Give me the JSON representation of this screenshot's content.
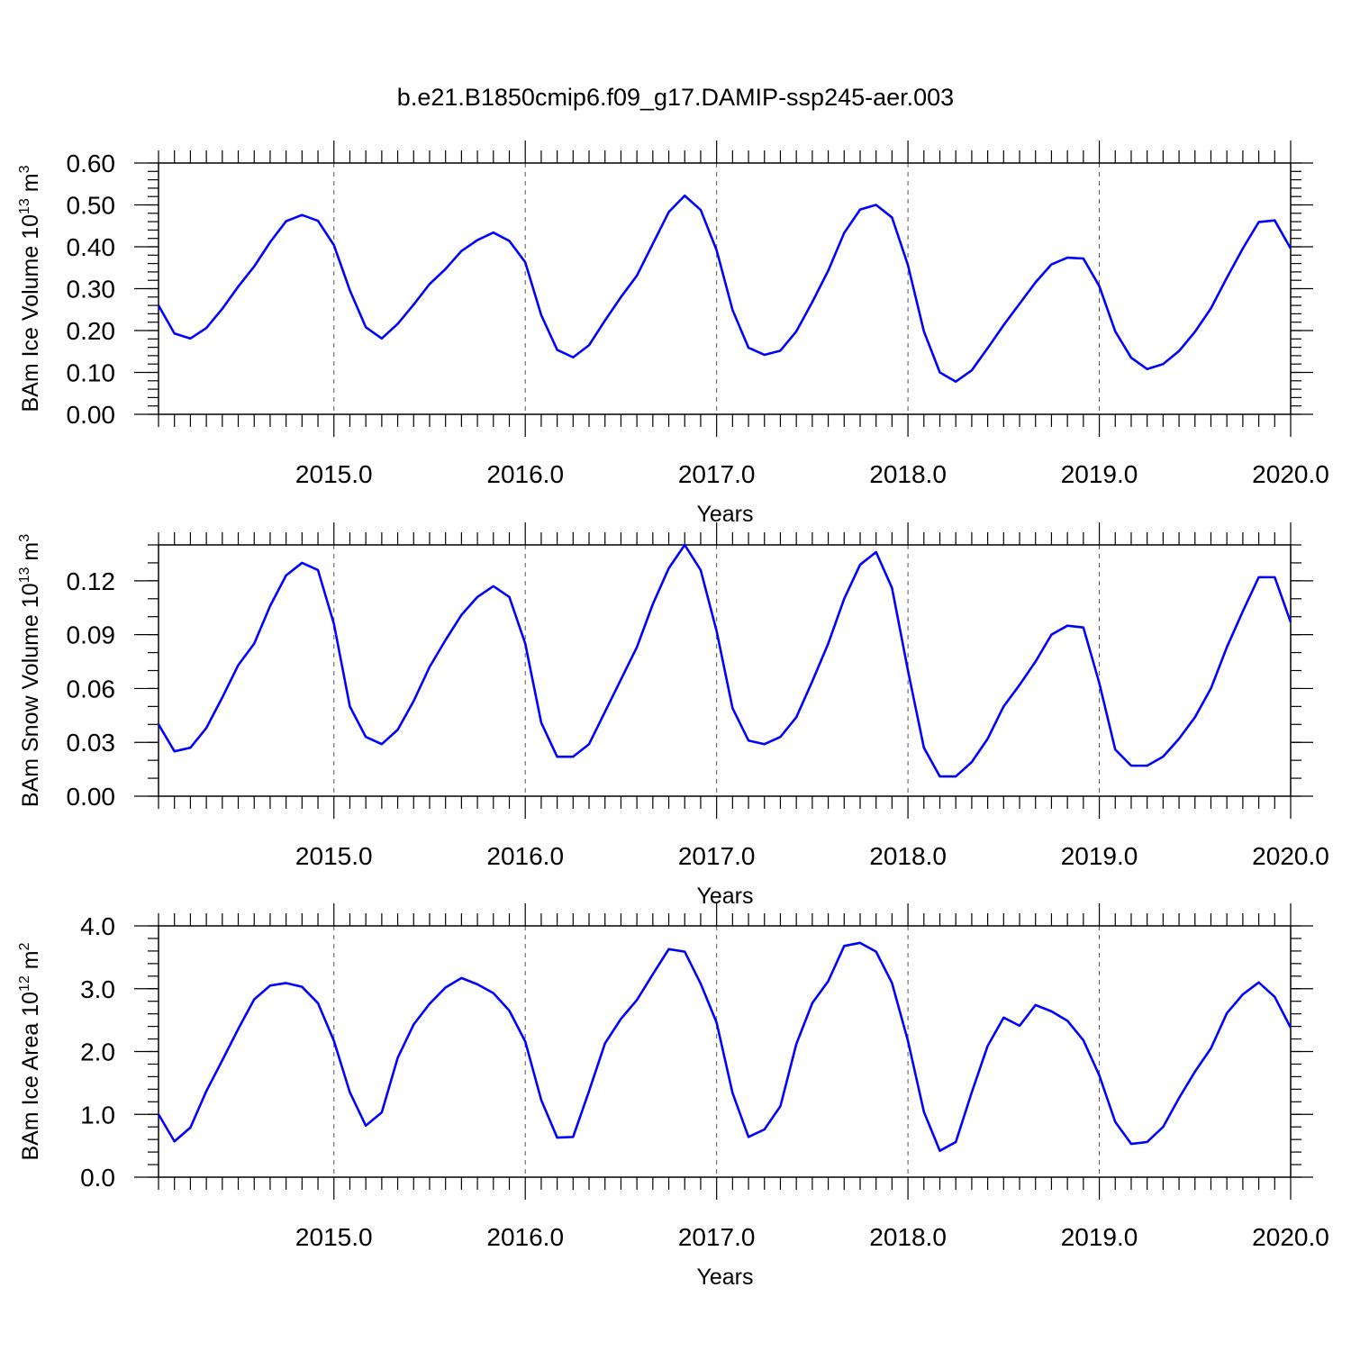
{
  "title": "b.e21.B1850cmip6.f09_g17.DAMIP-ssp245-aer.003",
  "colors": {
    "line": "#0000ff"
  },
  "chart_data": [
    {
      "type": "line",
      "ylabel": "BAm Ice Volume 10",
      "ylabel_exp": "13",
      "ylabel_unit": " m",
      "ylabel_unit_exp": "3",
      "xlabel": "Years",
      "xlim": [
        2014.0833,
        2020.0
      ],
      "ylim": [
        0,
        0.6
      ],
      "yticks": [
        0,
        0.1,
        0.2,
        0.3,
        0.4,
        0.5,
        0.6
      ],
      "ytick_labels": [
        "0.00",
        "0.10",
        "0.20",
        "0.30",
        "0.40",
        "0.50",
        "0.60"
      ],
      "yminor": 0.02,
      "xticks": [
        2015,
        2016,
        2017,
        2018,
        2019,
        2020
      ],
      "xtick_labels": [
        "2015.0",
        "2016.0",
        "2017.0",
        "2018.0",
        "2019.0",
        "2020.0"
      ],
      "grid": "vertical-dashed",
      "series": [
        {
          "values": [
            0.26,
            0.193,
            0.181,
            0.206,
            0.252,
            0.305,
            0.353,
            0.411,
            0.461,
            0.476,
            0.462,
            0.404,
            0.296,
            0.208,
            0.181,
            0.216,
            0.262,
            0.311,
            0.347,
            0.39,
            0.416,
            0.434,
            0.414,
            0.363,
            0.237,
            0.154,
            0.136,
            0.165,
            0.224,
            0.28,
            0.331,
            0.407,
            0.483,
            0.522,
            0.488,
            0.392,
            0.249,
            0.159,
            0.142,
            0.152,
            0.198,
            0.268,
            0.343,
            0.433,
            0.489,
            0.5,
            0.47,
            0.356,
            0.198,
            0.1,
            0.078,
            0.105,
            0.158,
            0.213,
            0.264,
            0.315,
            0.358,
            0.374,
            0.372,
            0.306,
            0.198,
            0.135,
            0.108,
            0.12,
            0.151,
            0.197,
            0.253,
            0.326,
            0.396,
            0.459,
            0.463,
            0.396
          ]
        }
      ]
    },
    {
      "type": "line",
      "ylabel": "BAm Snow Volume 10",
      "ylabel_exp": "13",
      "ylabel_unit": " m",
      "ylabel_unit_exp": "3",
      "xlabel": "Years",
      "xlim": [
        2014.0833,
        2020.0
      ],
      "ylim": [
        0,
        0.14
      ],
      "yticks": [
        0,
        0.03,
        0.06,
        0.09,
        0.12
      ],
      "ytick_labels": [
        "0.00",
        "0.03",
        "0.06",
        "0.09",
        "0.12"
      ],
      "yminor": 0.01,
      "xticks": [
        2015,
        2016,
        2017,
        2018,
        2019,
        2020
      ],
      "xtick_labels": [
        "2015.0",
        "2016.0",
        "2017.0",
        "2018.0",
        "2019.0",
        "2020.0"
      ],
      "grid": "vertical-dashed",
      "series": [
        {
          "values": [
            0.04,
            0.025,
            0.027,
            0.038,
            0.055,
            0.073,
            0.085,
            0.106,
            0.123,
            0.13,
            0.126,
            0.096,
            0.05,
            0.033,
            0.029,
            0.037,
            0.053,
            0.072,
            0.087,
            0.101,
            0.111,
            0.117,
            0.111,
            0.085,
            0.041,
            0.022,
            0.022,
            0.029,
            0.047,
            0.065,
            0.083,
            0.107,
            0.127,
            0.14,
            0.126,
            0.092,
            0.049,
            0.031,
            0.029,
            0.033,
            0.044,
            0.064,
            0.085,
            0.11,
            0.129,
            0.136,
            0.116,
            0.07,
            0.027,
            0.011,
            0.011,
            0.019,
            0.032,
            0.05,
            0.062,
            0.075,
            0.09,
            0.095,
            0.094,
            0.063,
            0.026,
            0.017,
            0.017,
            0.022,
            0.032,
            0.044,
            0.06,
            0.083,
            0.103,
            0.122,
            0.122,
            0.097
          ]
        }
      ]
    },
    {
      "type": "line",
      "ylabel": "BAm Ice Area 10",
      "ylabel_exp": "12",
      "ylabel_unit": " m",
      "ylabel_unit_exp": "2",
      "xlabel": "Years",
      "xlim": [
        2014.0833,
        2020.0
      ],
      "ylim": [
        0,
        4.0
      ],
      "yticks": [
        0,
        1.0,
        2.0,
        3.0,
        4.0
      ],
      "ytick_labels": [
        "0.0",
        "1.0",
        "2.0",
        "3.0",
        "4.0"
      ],
      "yminor": 0.2,
      "xticks": [
        2015,
        2016,
        2017,
        2018,
        2019,
        2020
      ],
      "xtick_labels": [
        "2015.0",
        "2016.0",
        "2017.0",
        "2018.0",
        "2019.0",
        "2020.0"
      ],
      "grid": "vertical-dashed",
      "series": [
        {
          "values": [
            1.0,
            0.57,
            0.79,
            1.37,
            1.86,
            2.36,
            2.83,
            3.05,
            3.09,
            3.03,
            2.77,
            2.17,
            1.35,
            0.82,
            1.03,
            1.9,
            2.43,
            2.76,
            3.02,
            3.17,
            3.07,
            2.93,
            2.65,
            2.16,
            1.23,
            0.63,
            0.64,
            1.37,
            2.13,
            2.52,
            2.82,
            3.23,
            3.63,
            3.59,
            3.08,
            2.46,
            1.34,
            0.64,
            0.76,
            1.13,
            2.12,
            2.77,
            3.12,
            3.68,
            3.73,
            3.59,
            3.09,
            2.17,
            1.04,
            0.42,
            0.56,
            1.35,
            2.09,
            2.54,
            2.41,
            2.74,
            2.64,
            2.49,
            2.18,
            1.62,
            0.88,
            0.53,
            0.56,
            0.8,
            1.26,
            1.68,
            2.05,
            2.61,
            2.91,
            3.1,
            2.87,
            2.38
          ]
        }
      ]
    }
  ]
}
